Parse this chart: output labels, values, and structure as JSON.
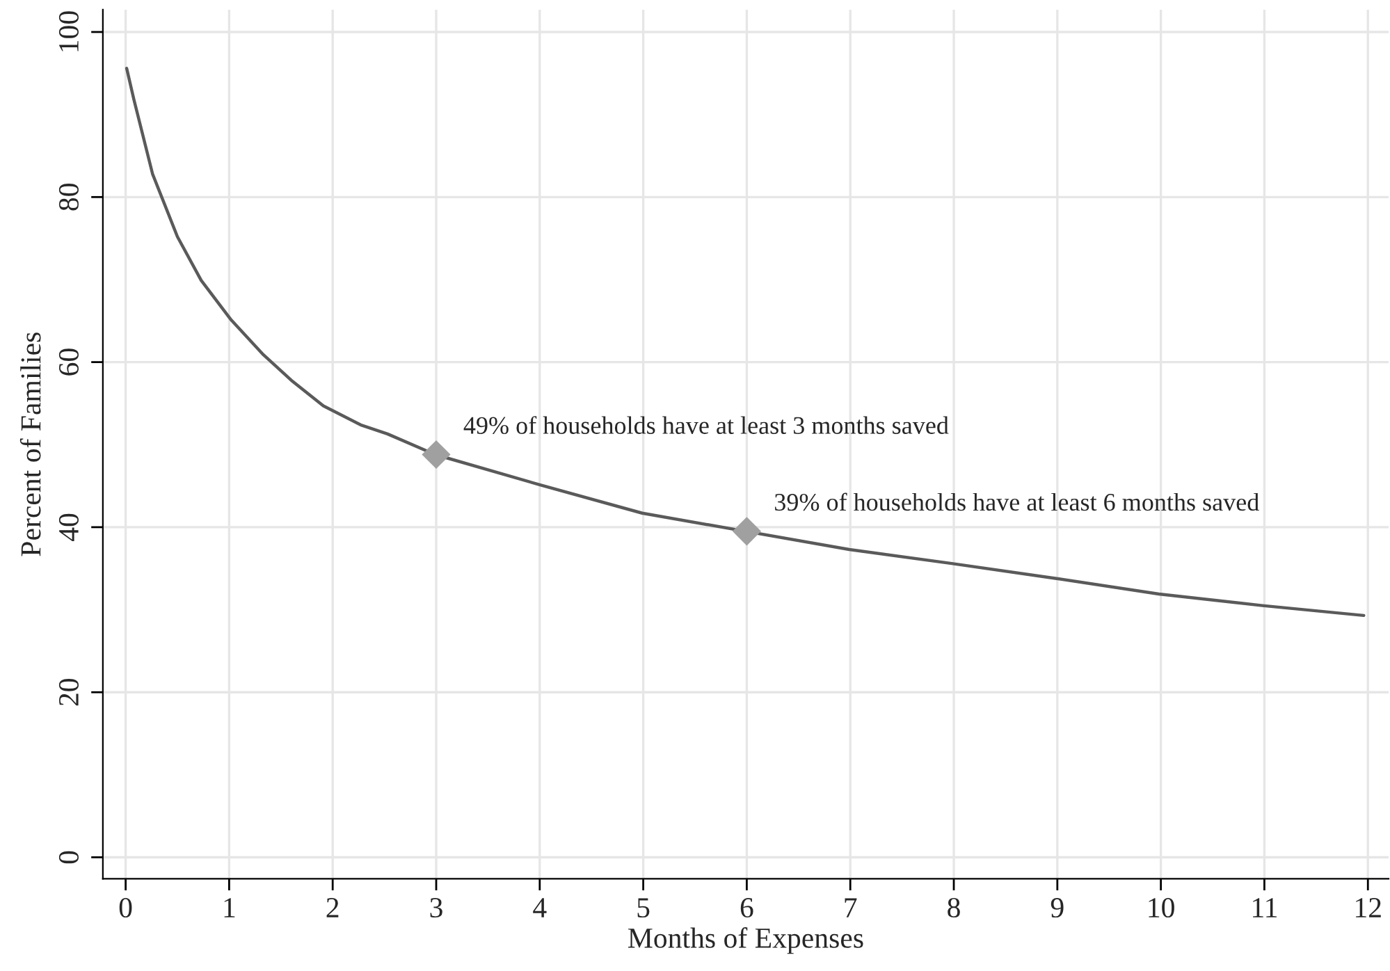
{
  "chart_data": {
    "type": "line",
    "xlabel": "Months of Expenses",
    "ylabel": "Percent of Families",
    "xlim": [
      -0.22,
      12.2
    ],
    "ylim": [
      -2.6,
      102.7
    ],
    "xticks": [
      0,
      1,
      2,
      3,
      4,
      5,
      6,
      7,
      8,
      9,
      10,
      11,
      12
    ],
    "yticks": [
      0,
      20,
      40,
      60,
      80,
      100
    ],
    "grid": true,
    "legend": false,
    "marker": "none",
    "line_style": "solid",
    "series": [
      {
        "color": "#5a5a5a",
        "x": [
          0.01,
          0.08,
          0.26,
          0.5,
          0.73,
          1.02,
          1.33,
          1.6,
          1.91,
          2.27,
          2.53,
          2.99,
          4.01,
          4.99,
          5.99,
          6.99,
          7.98,
          8.98,
          9.98,
          10.98,
          11.96
        ],
        "values": [
          95.6,
          91.8,
          82.8,
          75.2,
          69.9,
          65.1,
          60.9,
          57.8,
          54.7,
          52.4,
          51.3,
          48.8,
          45.1,
          41.7,
          39.5,
          37.3,
          35.6,
          33.8,
          31.9,
          30.5,
          29.3
        ]
      },
      {
        "type": "scatter",
        "color": "#a0a0a0",
        "marker": "diamond",
        "x": [
          3,
          6
        ],
        "values": [
          48.8,
          39.5
        ]
      }
    ],
    "annotations": [
      {
        "text": "49% of households have at least 3 months saved",
        "x": 3,
        "y": 48.8
      },
      {
        "text": "39% of households have at least 6 months saved",
        "x": 6,
        "y": 39.5
      }
    ]
  }
}
